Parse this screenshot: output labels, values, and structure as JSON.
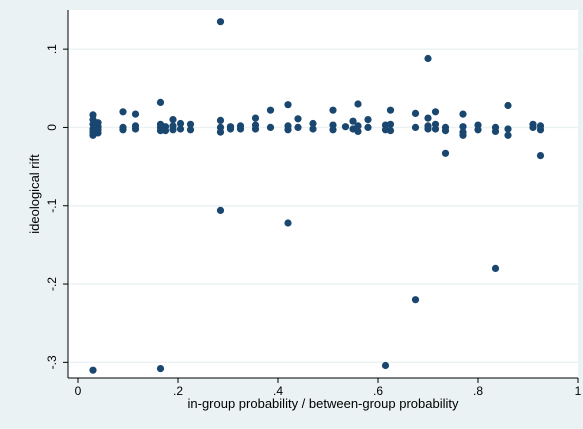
{
  "colors": {
    "outer_background": "#eaf2f3",
    "plot_background": "#ffffff",
    "marker": "#1a476f",
    "axis": "#000000",
    "gridline": "#eaf2f3"
  },
  "chart_data": {
    "type": "scatter",
    "title": "",
    "xlabel": "in-group probability / between-group probability",
    "ylabel": "ideological rift",
    "xlim": [
      -0.02,
      1.0
    ],
    "ylim": [
      -0.32,
      0.15
    ],
    "x_ticks": [
      0,
      0.2,
      0.4,
      0.6,
      0.8,
      1
    ],
    "x_tick_labels": [
      "0",
      ".2",
      ".4",
      ".6",
      ".8",
      "1"
    ],
    "y_ticks": [
      -0.3,
      -0.2,
      -0.1,
      0,
      0.1
    ],
    "y_tick_labels": [
      "-.3",
      "-.2",
      "-.1",
      "0",
      ".1"
    ],
    "grid": "horizontal",
    "legend": "none",
    "points": [
      {
        "x": 0.03,
        "y": 0.016
      },
      {
        "x": 0.03,
        "y": 0.01
      },
      {
        "x": 0.03,
        "y": 0.004
      },
      {
        "x": 0.03,
        "y": -0.002
      },
      {
        "x": 0.03,
        "y": -0.006
      },
      {
        "x": 0.03,
        "y": -0.01
      },
      {
        "x": 0.04,
        "y": 0.006
      },
      {
        "x": 0.04,
        "y": 0.001
      },
      {
        "x": 0.04,
        "y": -0.003
      },
      {
        "x": 0.04,
        "y": -0.007
      },
      {
        "x": 0.03,
        "y": -0.31
      },
      {
        "x": 0.09,
        "y": 0.02
      },
      {
        "x": 0.09,
        "y": 0.0
      },
      {
        "x": 0.09,
        "y": -0.003
      },
      {
        "x": 0.115,
        "y": 0.017
      },
      {
        "x": 0.115,
        "y": 0.002
      },
      {
        "x": 0.115,
        "y": -0.002
      },
      {
        "x": 0.165,
        "y": 0.032
      },
      {
        "x": 0.165,
        "y": 0.004
      },
      {
        "x": 0.165,
        "y": 0.0
      },
      {
        "x": 0.165,
        "y": -0.004
      },
      {
        "x": 0.175,
        "y": 0.001
      },
      {
        "x": 0.175,
        "y": -0.004
      },
      {
        "x": 0.19,
        "y": 0.01
      },
      {
        "x": 0.19,
        "y": 0.002
      },
      {
        "x": 0.19,
        "y": -0.003
      },
      {
        "x": 0.205,
        "y": 0.005
      },
      {
        "x": 0.205,
        "y": -0.002
      },
      {
        "x": 0.225,
        "y": 0.004
      },
      {
        "x": 0.225,
        "y": -0.003
      },
      {
        "x": 0.165,
        "y": -0.308
      },
      {
        "x": 0.285,
        "y": 0.135
      },
      {
        "x": 0.285,
        "y": 0.009
      },
      {
        "x": 0.285,
        "y": 0.0
      },
      {
        "x": 0.285,
        "y": -0.006
      },
      {
        "x": 0.285,
        "y": -0.106
      },
      {
        "x": 0.305,
        "y": 0.001
      },
      {
        "x": 0.305,
        "y": -0.002
      },
      {
        "x": 0.325,
        "y": 0.002
      },
      {
        "x": 0.325,
        "y": -0.002
      },
      {
        "x": 0.355,
        "y": 0.012
      },
      {
        "x": 0.355,
        "y": 0.003
      },
      {
        "x": 0.355,
        "y": -0.002
      },
      {
        "x": 0.385,
        "y": 0.022
      },
      {
        "x": 0.385,
        "y": 0.0
      },
      {
        "x": 0.42,
        "y": 0.029
      },
      {
        "x": 0.42,
        "y": 0.002
      },
      {
        "x": 0.42,
        "y": -0.003
      },
      {
        "x": 0.42,
        "y": -0.122
      },
      {
        "x": 0.44,
        "y": 0.011
      },
      {
        "x": 0.44,
        "y": 0.0
      },
      {
        "x": 0.47,
        "y": 0.005
      },
      {
        "x": 0.47,
        "y": -0.002
      },
      {
        "x": 0.51,
        "y": 0.022
      },
      {
        "x": 0.51,
        "y": 0.003
      },
      {
        "x": 0.51,
        "y": -0.003
      },
      {
        "x": 0.535,
        "y": 0.001
      },
      {
        "x": 0.55,
        "y": 0.008
      },
      {
        "x": 0.55,
        "y": -0.002
      },
      {
        "x": 0.56,
        "y": 0.03
      },
      {
        "x": 0.56,
        "y": 0.002
      },
      {
        "x": 0.56,
        "y": -0.005
      },
      {
        "x": 0.58,
        "y": 0.01
      },
      {
        "x": 0.58,
        "y": 0.0
      },
      {
        "x": 0.615,
        "y": 0.003
      },
      {
        "x": 0.615,
        "y": -0.003
      },
      {
        "x": 0.615,
        "y": -0.304
      },
      {
        "x": 0.625,
        "y": 0.022
      },
      {
        "x": 0.625,
        "y": 0.004
      },
      {
        "x": 0.625,
        "y": -0.004
      },
      {
        "x": 0.675,
        "y": 0.018
      },
      {
        "x": 0.675,
        "y": 0.0
      },
      {
        "x": 0.675,
        "y": -0.22
      },
      {
        "x": 0.7,
        "y": 0.088
      },
      {
        "x": 0.7,
        "y": 0.012
      },
      {
        "x": 0.7,
        "y": 0.002
      },
      {
        "x": 0.7,
        "y": -0.002
      },
      {
        "x": 0.715,
        "y": 0.02
      },
      {
        "x": 0.715,
        "y": 0.004
      },
      {
        "x": 0.715,
        "y": -0.002
      },
      {
        "x": 0.735,
        "y": 0.0
      },
      {
        "x": 0.735,
        "y": -0.004
      },
      {
        "x": 0.735,
        "y": -0.033
      },
      {
        "x": 0.77,
        "y": 0.017
      },
      {
        "x": 0.77,
        "y": 0.001
      },
      {
        "x": 0.77,
        "y": -0.006
      },
      {
        "x": 0.77,
        "y": -0.01
      },
      {
        "x": 0.8,
        "y": 0.003
      },
      {
        "x": 0.8,
        "y": -0.003
      },
      {
        "x": 0.835,
        "y": 0.0
      },
      {
        "x": 0.835,
        "y": -0.005
      },
      {
        "x": 0.835,
        "y": -0.18
      },
      {
        "x": 0.86,
        "y": 0.028
      },
      {
        "x": 0.86,
        "y": -0.002
      },
      {
        "x": 0.86,
        "y": -0.01
      },
      {
        "x": 0.91,
        "y": 0.004
      },
      {
        "x": 0.91,
        "y": 0.0
      },
      {
        "x": 0.925,
        "y": 0.002
      },
      {
        "x": 0.925,
        "y": -0.003
      },
      {
        "x": 0.925,
        "y": -0.036
      }
    ]
  }
}
